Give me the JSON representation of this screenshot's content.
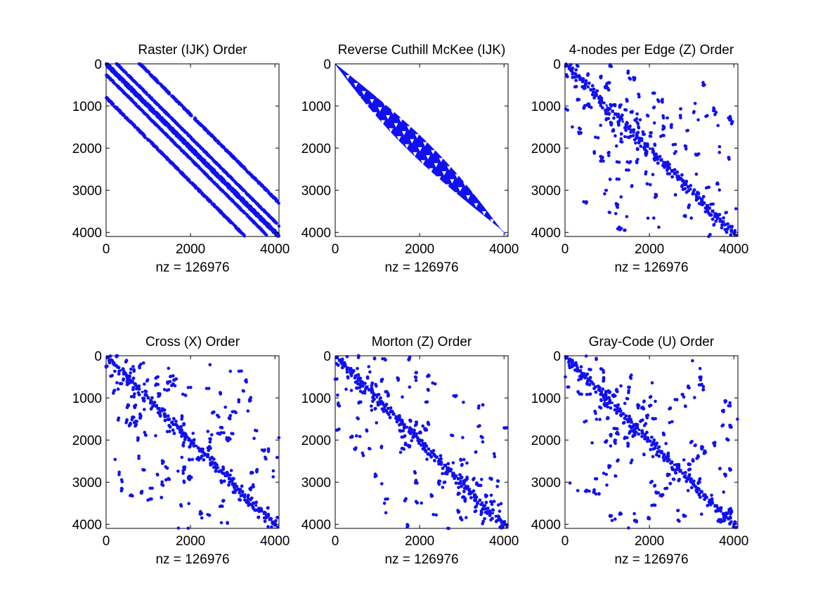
{
  "colors": {
    "marker": "#1010f0",
    "axes": "#000000",
    "background": "#ffffff"
  },
  "chart_data": [
    {
      "type": "scatter",
      "subtype": "sparsity-pattern",
      "title": "Raster (IJK) Order",
      "xlabel": "nz = 126976",
      "nz": 126976,
      "xlim": [
        0,
        4096
      ],
      "ylim": [
        4096,
        0
      ],
      "xticks": [
        0,
        2000,
        4000
      ],
      "yticks": [
        0,
        1000,
        2000,
        3000,
        4000
      ],
      "pattern": "banded",
      "bands": [
        {
          "offset": 0,
          "width": 90
        },
        {
          "offset": 256,
          "width": 25
        },
        {
          "offset": -256,
          "width": 25
        },
        {
          "offset": 800,
          "width": 40
        },
        {
          "offset": -800,
          "width": 40
        }
      ]
    },
    {
      "type": "scatter",
      "subtype": "sparsity-pattern",
      "title": "Reverse Cuthill McKee (IJK)",
      "xlabel": "nz = 126976",
      "nz": 126976,
      "xlim": [
        0,
        4096
      ],
      "ylim": [
        4096,
        0
      ],
      "xticks": [
        0,
        2000,
        4000
      ],
      "yticks": [
        0,
        1000,
        2000,
        3000,
        4000
      ],
      "pattern": "envelope",
      "max_half_bandwidth": 310
    },
    {
      "type": "scatter",
      "subtype": "sparsity-pattern",
      "title": "4-nodes per Edge (Z) Order",
      "xlabel": "nz = 126976",
      "nz": 126976,
      "xlim": [
        0,
        4096
      ],
      "ylim": [
        4096,
        0
      ],
      "xticks": [
        0,
        2000,
        4000
      ],
      "yticks": [
        0,
        1000,
        2000,
        3000,
        4000
      ],
      "pattern": "block-hierarchical"
    },
    {
      "type": "scatter",
      "subtype": "sparsity-pattern",
      "title": "Cross (X) Order",
      "xlabel": "nz = 126976",
      "nz": 126976,
      "xlim": [
        0,
        4096
      ],
      "ylim": [
        4096,
        0
      ],
      "xticks": [
        0,
        2000,
        4000
      ],
      "yticks": [
        0,
        1000,
        2000,
        3000,
        4000
      ],
      "pattern": "block-hierarchical"
    },
    {
      "type": "scatter",
      "subtype": "sparsity-pattern",
      "title": "Morton (Z) Order",
      "xlabel": "nz = 126976",
      "nz": 126976,
      "xlim": [
        0,
        4096
      ],
      "ylim": [
        4096,
        0
      ],
      "xticks": [
        0,
        2000,
        4000
      ],
      "yticks": [
        0,
        1000,
        2000,
        3000,
        4000
      ],
      "pattern": "block-hierarchical"
    },
    {
      "type": "scatter",
      "subtype": "sparsity-pattern",
      "title": "Gray-Code (U) Order",
      "xlabel": "nz = 126976",
      "nz": 126976,
      "xlim": [
        0,
        4096
      ],
      "ylim": [
        4096,
        0
      ],
      "xticks": [
        0,
        2000,
        4000
      ],
      "yticks": [
        0,
        1000,
        2000,
        3000,
        4000
      ],
      "pattern": "block-hierarchical"
    }
  ]
}
